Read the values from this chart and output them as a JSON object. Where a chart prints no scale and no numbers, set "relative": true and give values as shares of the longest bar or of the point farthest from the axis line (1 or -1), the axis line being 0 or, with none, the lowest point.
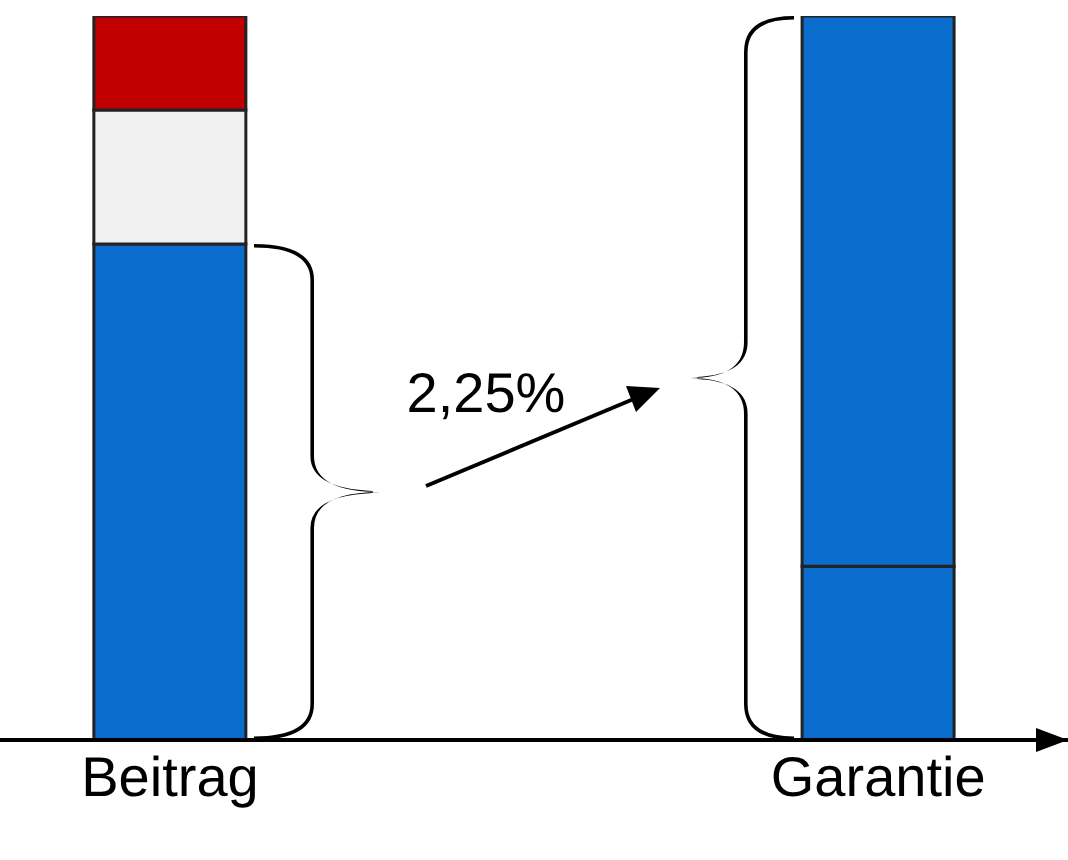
{
  "chart_data": {
    "type": "bar",
    "relative": true,
    "stacked": true,
    "categories": [
      "Beitrag",
      "Garantie"
    ],
    "series": [
      {
        "colors": [
          "#0a6ccc",
          "#0a6ccc"
        ],
        "values": [
          0.685,
          0.24
        ]
      },
      {
        "colors": [
          "#f0f0f0",
          "#0a6ccc"
        ],
        "values": [
          0.185,
          0.76
        ]
      },
      {
        "colors": [
          "#c00000",
          "#c00000"
        ],
        "values": [
          0.13,
          null
        ]
      }
    ],
    "annotations": [
      "2,25%"
    ]
  }
}
